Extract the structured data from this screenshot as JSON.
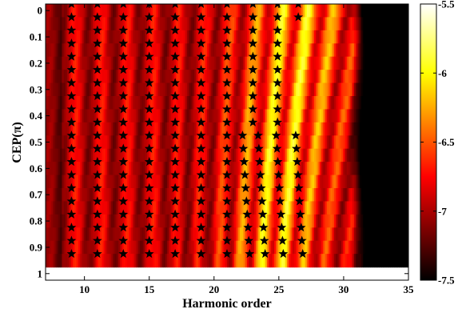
{
  "chart_data": {
    "type": "heatmap",
    "title": "",
    "xlabel": "Harmonic order",
    "ylabel": "CEP(π)",
    "xlim": [
      7,
      35
    ],
    "ylim": [
      0,
      1.05
    ],
    "y_reversed": true,
    "x_ticks": [
      "10",
      "15",
      "20",
      "25",
      "30",
      "35"
    ],
    "y_ticks": [
      "0",
      "0.1",
      "0.2",
      "0.3",
      "0.4",
      "0.5",
      "0.6",
      "0.7",
      "0.8",
      "0.9",
      "1"
    ],
    "colormap": "hot",
    "colorbar": {
      "range": [
        -7.5,
        -5.5
      ],
      "ticks": [
        "-5.5",
        "-6",
        "-6.5",
        "-7",
        "-7.5"
      ]
    },
    "cutoff_order": 30.5,
    "cep_values": [
      0,
      0.05,
      0.1,
      0.15,
      0.2,
      0.25,
      0.3,
      0.35,
      0.4,
      0.45,
      0.5,
      0.55,
      0.6,
      0.65,
      0.7,
      0.75,
      0.8,
      0.85,
      0.9,
      0.95
    ],
    "star_marker_series": [
      {
        "order": 9,
        "cep_start": 0,
        "cep_end": 0.95,
        "dx": 0
      },
      {
        "order": 11,
        "cep_start": 0,
        "cep_end": 0.95,
        "dx": 0
      },
      {
        "order": 13,
        "cep_start": 0,
        "cep_end": 0.95,
        "dx": 0
      },
      {
        "order": 15,
        "cep_start": 0,
        "cep_end": 0.95,
        "dx": 0
      },
      {
        "order": 17,
        "cep_start": 0,
        "cep_end": 0.95,
        "dx": 0
      },
      {
        "order": 19,
        "cep_start": 0,
        "cep_end": 0.95,
        "dx": 0
      },
      {
        "order": 21,
        "cep_start": 0,
        "cep_end": 0.95,
        "dx": 0
      },
      {
        "order": 23,
        "cep_start": 0,
        "cep_end": 0.45,
        "dx": 0
      },
      {
        "order": 24.9,
        "cep_start": 0,
        "cep_end": 0.45,
        "dx": 0
      },
      {
        "order": 26.5,
        "cep_start": 0,
        "cep_end": 0.05,
        "dx": 0
      },
      {
        "order": 22.2,
        "cep_start": 0.5,
        "cep_end": 0.95,
        "dx": 0.06
      },
      {
        "order": 23.4,
        "cep_start": 0.5,
        "cep_end": 0.95,
        "dx": 0.06
      },
      {
        "order": 24.8,
        "cep_start": 0.5,
        "cep_end": 0.95,
        "dx": 0.06
      },
      {
        "order": 26.3,
        "cep_start": 0.5,
        "cep_end": 0.95,
        "dx": 0.06
      }
    ]
  }
}
